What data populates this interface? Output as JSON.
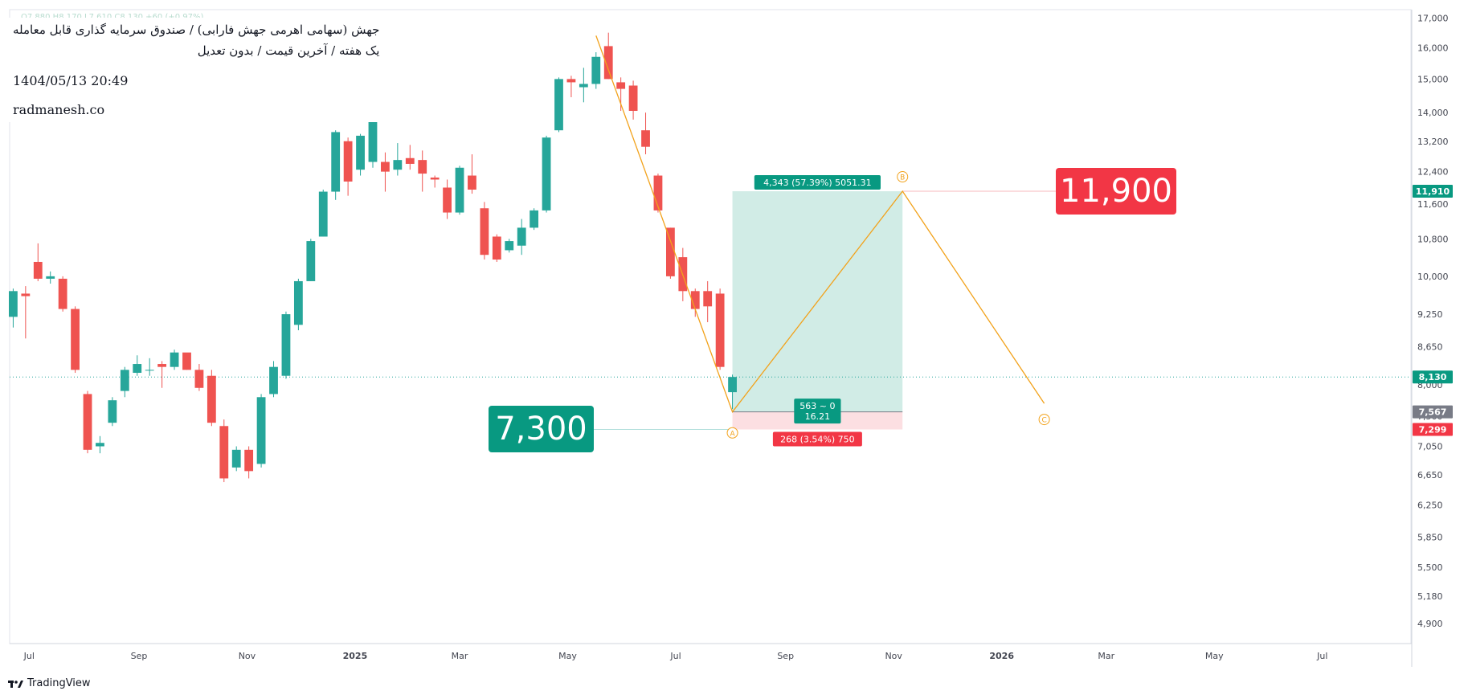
{
  "header": {
    "title_line": "جهش (سهامی اهرمی جهش فارابی) / صندوق سرمایه گذاری قابل معامله",
    "subtitle_line": "یک هفته / آخرین قیمت / بدون تعدیل",
    "datetime": "1404/05/13 20:49",
    "website": "radmanesh.co",
    "ohlc_faint": "O7,880 H8,170 L7,610 C8,130 +60 (+0.97%)"
  },
  "footer": {
    "brand": "TradingView"
  },
  "colors": {
    "up": "#26a69a",
    "down": "#ef5350",
    "wave": "#f2a21b",
    "target_fill": "#d1ece6",
    "stop_fill": "#fcdfe2",
    "target_badge": "#089981",
    "stop_badge": "#f23645",
    "price_line": "#26a69a"
  },
  "chart_data": {
    "type": "candlestick",
    "interval": "1W",
    "y_scale": "log",
    "y_range": [
      4700,
      17300
    ],
    "x_range": [
      "2024-06-20",
      "2026-08-20"
    ],
    "y_ticks": [
      4900,
      5180,
      5500,
      5850,
      6250,
      6650,
      7050,
      7500,
      8000,
      8650,
      9250,
      10000,
      10800,
      11600,
      12400,
      13200,
      14000,
      15000,
      16000,
      17000
    ],
    "x_ticks": [
      {
        "date": "2024-07-01",
        "label": "Jul",
        "bold": false
      },
      {
        "date": "2024-09-01",
        "label": "Sep",
        "bold": false
      },
      {
        "date": "2024-11-01",
        "label": "Nov",
        "bold": false
      },
      {
        "date": "2025-01-01",
        "label": "2025",
        "bold": true
      },
      {
        "date": "2025-03-01",
        "label": "Mar",
        "bold": false
      },
      {
        "date": "2025-05-01",
        "label": "May",
        "bold": false
      },
      {
        "date": "2025-07-01",
        "label": "Jul",
        "bold": false
      },
      {
        "date": "2025-09-01",
        "label": "Sep",
        "bold": false
      },
      {
        "date": "2025-11-01",
        "label": "Nov",
        "bold": false
      },
      {
        "date": "2026-01-01",
        "label": "2026",
        "bold": true
      },
      {
        "date": "2026-03-01",
        "label": "Mar",
        "bold": false
      },
      {
        "date": "2026-05-01",
        "label": "May",
        "bold": false
      },
      {
        "date": "2026-07-01",
        "label": "Jul",
        "bold": false
      }
    ],
    "first_candle_date": "2024-06-22",
    "candles": [
      [
        9200,
        9750,
        9000,
        9700
      ],
      [
        9650,
        9800,
        8800,
        9600
      ],
      [
        10300,
        10700,
        9900,
        9950
      ],
      [
        9950,
        10100,
        9850,
        10000
      ],
      [
        9950,
        10000,
        9300,
        9350
      ],
      [
        9350,
        9400,
        8200,
        8250
      ],
      [
        7850,
        7900,
        6950,
        7000
      ],
      [
        7050,
        7200,
        6950,
        7100
      ],
      [
        7400,
        7800,
        7350,
        7750
      ],
      [
        7900,
        8300,
        7800,
        8250
      ],
      [
        8200,
        8500,
        8150,
        8350
      ],
      [
        8250,
        8450,
        8150,
        8250
      ],
      [
        8350,
        8400,
        7950,
        8300
      ],
      [
        8300,
        8600,
        8250,
        8550
      ],
      [
        8550,
        8500,
        8250,
        8250
      ],
      [
        8250,
        8350,
        7900,
        7950
      ],
      [
        8150,
        8250,
        7350,
        7400
      ],
      [
        7350,
        7450,
        6550,
        6600
      ],
      [
        6750,
        7050,
        6700,
        7000
      ],
      [
        7000,
        7050,
        6600,
        6700
      ],
      [
        6800,
        7850,
        6750,
        7800
      ],
      [
        7850,
        8400,
        7800,
        8300
      ],
      [
        8150,
        9300,
        8100,
        9250
      ],
      [
        9050,
        9950,
        8950,
        9900
      ],
      [
        9900,
        10800,
        9900,
        10750
      ],
      [
        10850,
        11950,
        10850,
        11900
      ],
      [
        11900,
        13500,
        11700,
        13450
      ],
      [
        13200,
        13300,
        11800,
        12150
      ],
      [
        12450,
        13400,
        12300,
        13350
      ],
      [
        12650,
        13800,
        12500,
        13750
      ],
      [
        12650,
        12900,
        11900,
        12400
      ],
      [
        12450,
        13150,
        12300,
        12700
      ],
      [
        12750,
        13100,
        12450,
        12600
      ],
      [
        12700,
        12950,
        11900,
        12350
      ],
      [
        12250,
        12300,
        12000,
        12200
      ],
      [
        12000,
        12200,
        11250,
        11400
      ],
      [
        11400,
        12550,
        11350,
        12500
      ],
      [
        12300,
        12850,
        11850,
        11950
      ],
      [
        11500,
        11650,
        10350,
        10450
      ],
      [
        10850,
        10900,
        10300,
        10350
      ],
      [
        10550,
        10800,
        10500,
        10750
      ],
      [
        10650,
        11250,
        10450,
        11050
      ],
      [
        11050,
        11500,
        11000,
        11450
      ],
      [
        11450,
        13350,
        11400,
        13300
      ],
      [
        13500,
        15050,
        13450,
        15000
      ],
      [
        15000,
        15100,
        14450,
        14900
      ],
      [
        14750,
        15350,
        14300,
        14850
      ],
      [
        14850,
        15850,
        14700,
        15700
      ],
      [
        16050,
        16500,
        15000,
        15000
      ],
      [
        14900,
        15050,
        14050,
        14700
      ],
      [
        14800,
        14950,
        13800,
        14050
      ],
      [
        13500,
        14000,
        12850,
        13050
      ],
      [
        12300,
        12350,
        11400,
        11450
      ],
      [
        11050,
        11050,
        9950,
        10000
      ],
      [
        10400,
        10600,
        9500,
        9700
      ],
      [
        9700,
        9750,
        9200,
        9350
      ],
      [
        9700,
        9900,
        9100,
        9400
      ],
      [
        9650,
        9750,
        8250,
        8300
      ],
      [
        7880,
        8170,
        7610,
        8130
      ]
    ],
    "last_price": 8130,
    "wave_points": [
      {
        "date": "2025-05-17",
        "price": 16400,
        "label": ""
      },
      {
        "date": "2025-08-02",
        "price": 7567,
        "label": ""
      },
      {
        "date": "2025-11-06",
        "price": 11910,
        "label": "B"
      },
      {
        "date": "2026-01-25",
        "price": 7700,
        "label": "C"
      }
    ],
    "wave_label_a": {
      "date": "2025-08-02",
      "price": 7320,
      "label": "A"
    },
    "position": {
      "start_date": "2025-08-02",
      "end_date": "2025-11-06",
      "entry": 7567,
      "target": 11910,
      "stop": 7299,
      "target_text": "4,343 (57.39%) 5051.31",
      "mid_text_1": "563 ~ 0",
      "mid_text_2": "16.21",
      "stop_text": "268 (3.54%) 750"
    },
    "axis_badges": [
      {
        "price": 11910,
        "text": "11,910",
        "color": "#089981"
      },
      {
        "price": 8130,
        "text": "8,130",
        "color": "#089981"
      },
      {
        "price": 7567,
        "text": "7,567",
        "color": "#787b86"
      },
      {
        "price": 7299,
        "text": "7,299",
        "color": "#f23645"
      }
    ],
    "big_labels": [
      {
        "text": "11,900",
        "price": 11910,
        "color": "#f23645",
        "line_from_date": "2025-11-06",
        "line_color": "#f7b9bd"
      },
      {
        "text": "7,300",
        "price": 7299,
        "color": "#089981",
        "line_from_date": "2025-08-02",
        "line_color": "#b2dfdb"
      }
    ]
  }
}
